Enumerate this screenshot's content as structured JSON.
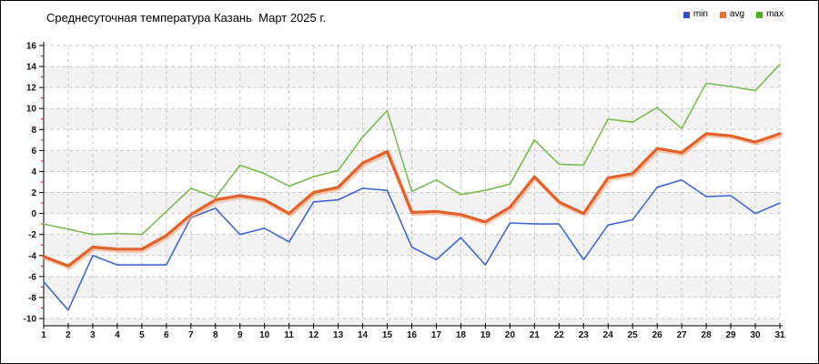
{
  "header": {
    "title": "Среднесуточная температура Казань  Март 2025 г."
  },
  "legend": {
    "items": [
      {
        "label": "min",
        "color": "#2a4fd2"
      },
      {
        "label": "avg",
        "color": "#e8722e"
      },
      {
        "label": "max",
        "color": "#4cad29"
      }
    ]
  },
  "style": {
    "grid_color": "#c9c9c9",
    "stripe_color": "#f2f2f2",
    "axis_color": "#000000",
    "major_tick_color": "#000000",
    "minor_tick_color": "#dd1111",
    "label_color": "#111111",
    "avg_shadow_color": "#f2a379"
  },
  "chart_data": {
    "type": "line",
    "title": "Среднесуточная температура Казань  Март 2025 г.",
    "x": [
      1,
      2,
      3,
      4,
      5,
      6,
      7,
      8,
      9,
      10,
      11,
      12,
      13,
      14,
      15,
      16,
      17,
      18,
      19,
      20,
      21,
      22,
      23,
      24,
      25,
      26,
      27,
      28,
      29,
      30,
      31
    ],
    "xlabel": "",
    "ylabel": "",
    "ylim": [
      -10,
      16
    ],
    "ytick_step": 2,
    "y_ticks": [
      16,
      14,
      12,
      10,
      8,
      6,
      4,
      2,
      0,
      -2,
      -4,
      -6,
      -8,
      -10
    ],
    "grid": true,
    "plot_bands": [
      "#ffffff",
      "#f2f2f2"
    ],
    "legend_position": "top-right",
    "series": [
      {
        "name": "min",
        "color": "#4466d0",
        "width": 1.6,
        "values": [
          -6.5,
          -9.2,
          -4.0,
          -4.9,
          -4.9,
          -4.9,
          -0.4,
          0.5,
          -2.0,
          -1.4,
          -2.7,
          1.1,
          1.3,
          2.4,
          2.2,
          -3.2,
          -4.4,
          -2.3,
          -4.9,
          -0.9,
          -1.0,
          -1.0,
          -4.4,
          -1.1,
          -0.6,
          2.5,
          3.2,
          1.6,
          1.7,
          0.0,
          1.0
        ]
      },
      {
        "name": "avg",
        "color": "#e2622b",
        "width": 3.2,
        "values": [
          -4.1,
          -5.0,
          -3.2,
          -3.4,
          -3.4,
          -2.1,
          -0.1,
          1.3,
          1.7,
          1.3,
          0.0,
          2.0,
          2.5,
          4.8,
          5.9,
          0.1,
          0.2,
          -0.1,
          -0.8,
          0.6,
          3.5,
          1.1,
          0.0,
          3.4,
          3.8,
          6.2,
          5.8,
          7.6,
          7.4,
          6.8,
          7.6
        ]
      },
      {
        "name": "max",
        "color": "#79ba51",
        "width": 1.6,
        "values": [
          -1.0,
          -1.5,
          -2.0,
          -1.9,
          -2.0,
          0.2,
          2.4,
          1.5,
          4.6,
          3.8,
          2.6,
          3.5,
          4.1,
          7.3,
          9.8,
          2.1,
          3.2,
          1.8,
          2.2,
          2.8,
          7.0,
          4.7,
          4.6,
          9.0,
          8.7,
          10.1,
          8.1,
          12.4,
          12.1,
          11.7,
          14.2
        ]
      }
    ]
  }
}
